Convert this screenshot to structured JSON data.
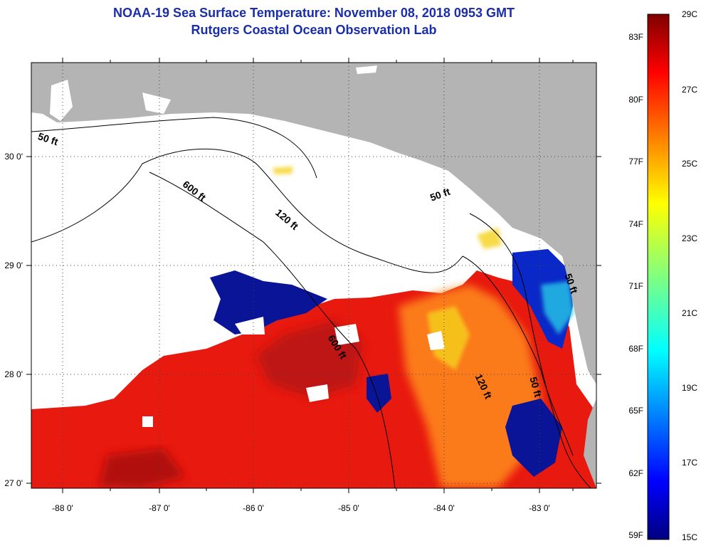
{
  "title": "NOAA-19 Sea Surface Temperature:  November 08, 2018 0953 GMT",
  "subtitle": "Rutgers Coastal Ocean Observation Lab",
  "map": {
    "lon_ticks": [
      "-88 0'",
      "-87 0'",
      "-86 0'",
      "-85 0'",
      "-84 0'",
      "-83 0'"
    ],
    "lat_ticks": [
      "30 0'",
      "29 0'",
      "28 0'",
      "27 0'"
    ],
    "depth_contours": [
      "50 ft",
      "600 ft",
      "120 ft",
      "50 ft",
      "600 ft",
      "120 ft",
      "50 ft",
      "50 ft"
    ],
    "colors": {
      "land": "#b4b4b4",
      "cloud": "#ffffff",
      "sst_warm": "#e8190f",
      "sst_dark": "#a40f0f",
      "sst_cool": "#0a1496"
    }
  },
  "colorbar": {
    "f_labels": [
      "83F",
      "80F",
      "77F",
      "74F",
      "71F",
      "68F",
      "65F",
      "62F",
      "59F"
    ],
    "c_labels": [
      "29C",
      "27C",
      "25C",
      "23C",
      "21C",
      "19C",
      "17C",
      "15C"
    ]
  }
}
